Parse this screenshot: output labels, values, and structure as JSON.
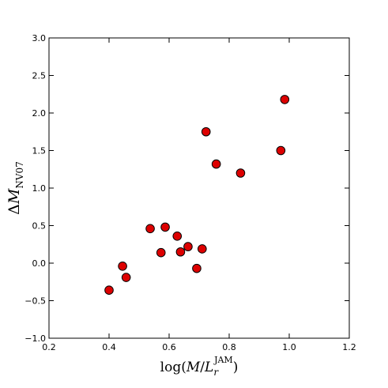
{
  "chart_data": {
    "type": "scatter",
    "xlabel": "log(M/L_r^JAM)",
    "ylabel": "ΔM_NV07",
    "xlim": [
      0.2,
      1.2
    ],
    "ylim": [
      -1.0,
      3.0
    ],
    "xticks": [
      "0.2",
      "0.4",
      "0.6",
      "0.8",
      "1.0",
      "1.2"
    ],
    "yticks": [
      "−1.0",
      "−0.5",
      "0.0",
      "0.5",
      "1.0",
      "1.5",
      "2.0",
      "2.5",
      "3.0"
    ],
    "grid": false,
    "marker_color": "#dd0000",
    "points": [
      {
        "x": 0.4,
        "y": -0.36
      },
      {
        "x": 0.445,
        "y": -0.04
      },
      {
        "x": 0.457,
        "y": -0.19
      },
      {
        "x": 0.537,
        "y": 0.46
      },
      {
        "x": 0.573,
        "y": 0.14
      },
      {
        "x": 0.587,
        "y": 0.48
      },
      {
        "x": 0.627,
        "y": 0.36
      },
      {
        "x": 0.638,
        "y": 0.15
      },
      {
        "x": 0.663,
        "y": 0.22
      },
      {
        "x": 0.692,
        "y": -0.07
      },
      {
        "x": 0.71,
        "y": 0.19
      },
      {
        "x": 0.723,
        "y": 1.75
      },
      {
        "x": 0.757,
        "y": 1.32
      },
      {
        "x": 0.838,
        "y": 1.2
      },
      {
        "x": 0.972,
        "y": 1.5
      },
      {
        "x": 0.985,
        "y": 2.18
      }
    ]
  }
}
